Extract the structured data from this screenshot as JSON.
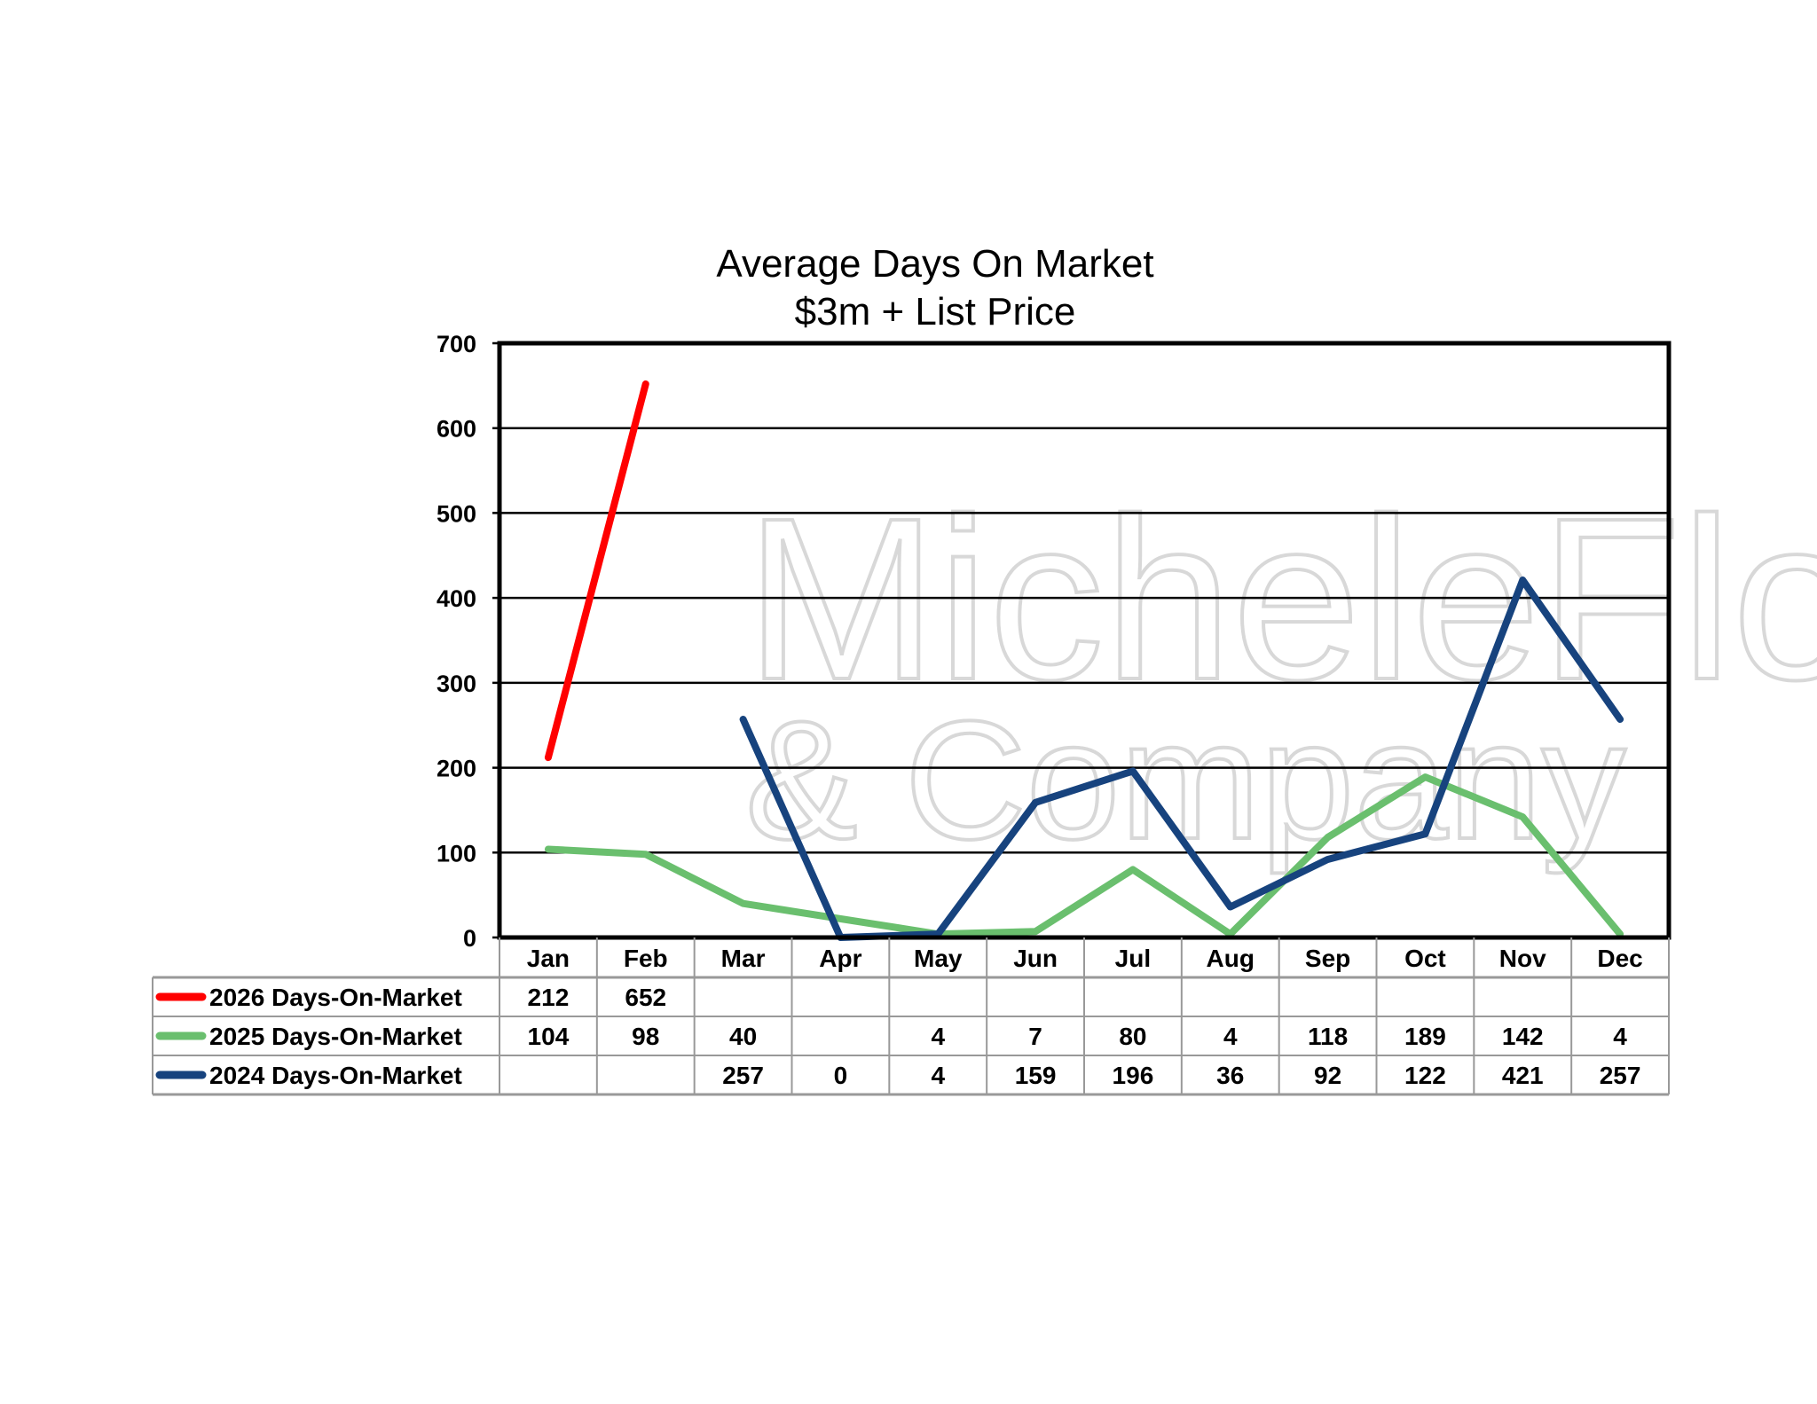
{
  "chart_data": {
    "type": "line",
    "title": "Average Days On Market",
    "subtitle": "$3m + List Price",
    "xlabel": "",
    "ylabel": "",
    "ylim": [
      0,
      700
    ],
    "yticks": [
      0,
      100,
      200,
      300,
      400,
      500,
      600,
      700
    ],
    "grid": true,
    "legend": "data-table-below",
    "categories": [
      "Jan",
      "Feb",
      "Mar",
      "Apr",
      "May",
      "Jun",
      "Jul",
      "Aug",
      "Sep",
      "Oct",
      "Nov",
      "Dec"
    ],
    "series": [
      {
        "name": "2026 Days-On-Market",
        "color": "#ff0000",
        "values": [
          212,
          652,
          null,
          null,
          null,
          null,
          null,
          null,
          null,
          null,
          null,
          null
        ]
      },
      {
        "name": "2025 Days-On-Market",
        "color": "#6abf6e",
        "values": [
          104,
          98,
          40,
          null,
          4,
          7,
          80,
          4,
          118,
          189,
          142,
          4
        ]
      },
      {
        "name": "2024 Days-On-Market",
        "color": "#17437e",
        "values": [
          null,
          null,
          257,
          0,
          4,
          159,
          196,
          36,
          92,
          122,
          421,
          257
        ]
      }
    ]
  },
  "watermark": {
    "line1": "MicheleFlory",
    "line2": "& Company"
  }
}
